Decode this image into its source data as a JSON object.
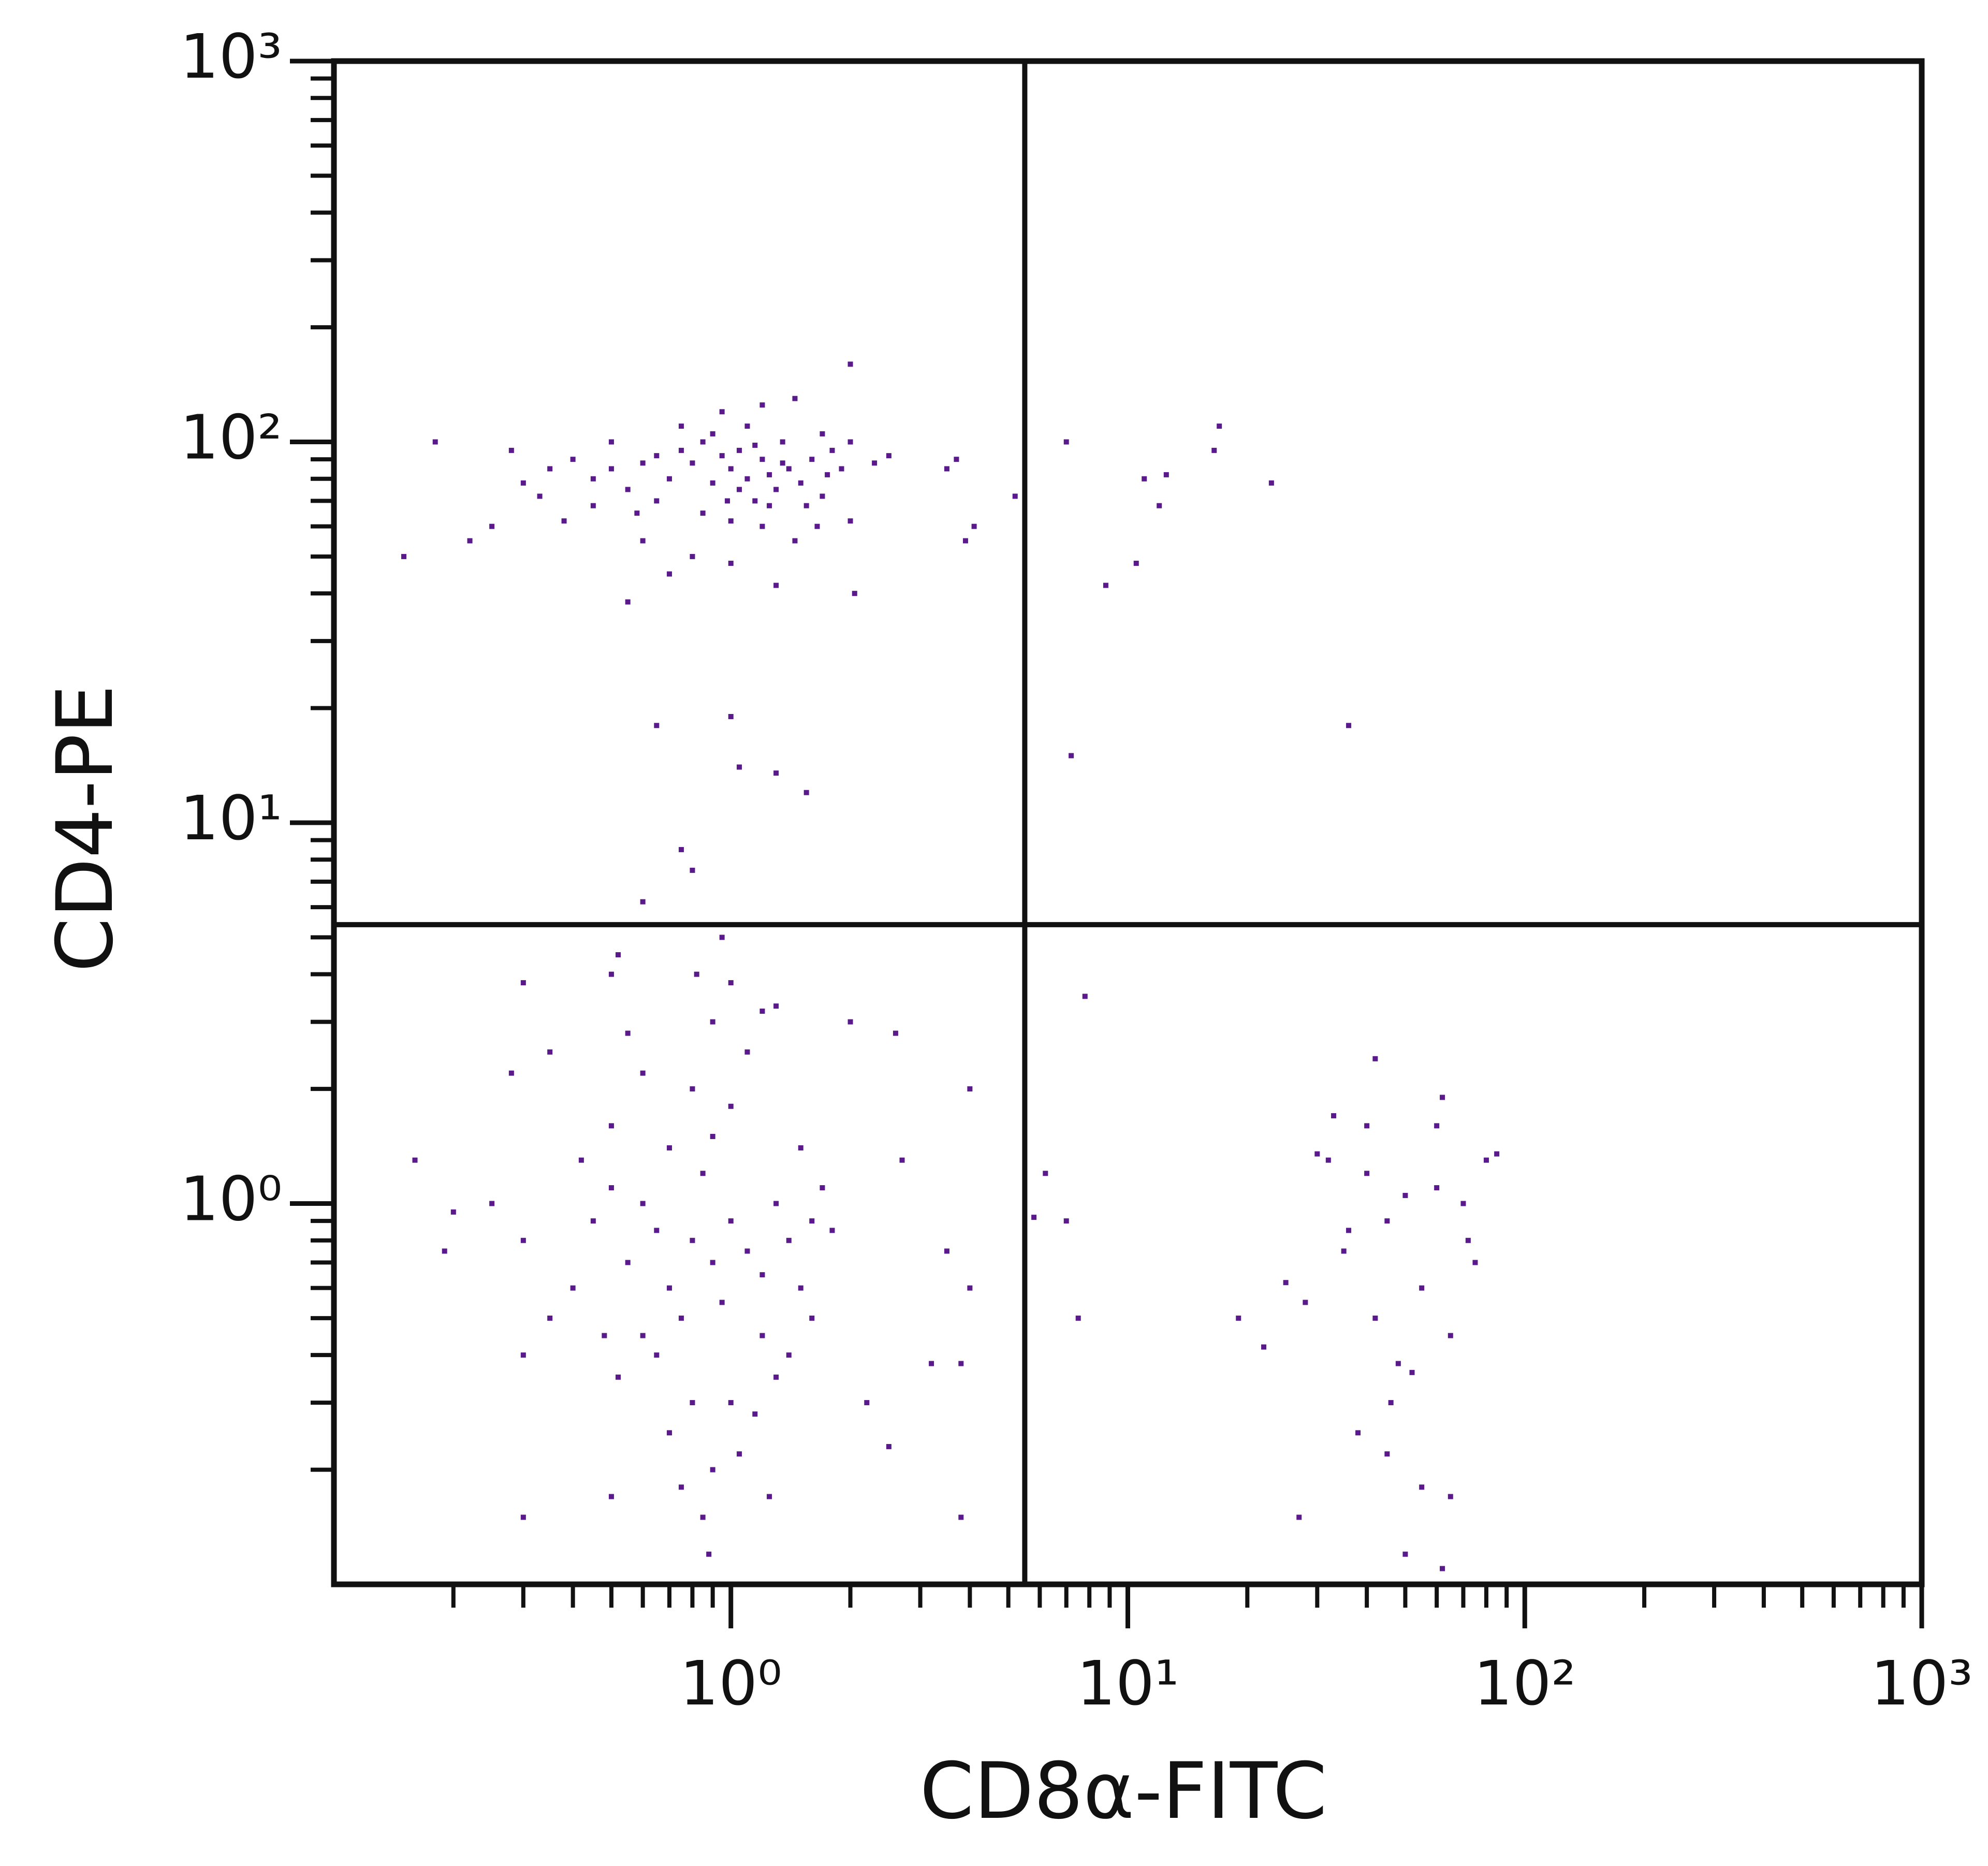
{
  "chart_data": {
    "type": "scatter",
    "x_label": "CD8α-FITC",
    "y_label": "CD4-PE",
    "color": "#5a1a8c",
    "xscale": "log",
    "yscale": "log",
    "xlim": [
      0.1,
      1000
    ],
    "ylim": [
      0.1,
      1000
    ],
    "xticks": [
      {
        "value": 1,
        "label": "10⁰"
      },
      {
        "value": 10,
        "label": "10¹"
      },
      {
        "value": 100,
        "label": "10²"
      },
      {
        "value": 1000,
        "label": "10³"
      }
    ],
    "yticks": [
      {
        "value": 1,
        "label": "10⁰"
      },
      {
        "value": 10,
        "label": "10¹"
      },
      {
        "value": 100,
        "label": "10²"
      },
      {
        "value": 1000,
        "label": "10³"
      }
    ],
    "xminorticks": [
      0.2,
      0.3,
      0.4,
      0.5,
      0.6,
      0.7,
      0.8,
      0.9,
      2,
      3,
      4,
      5,
      6,
      7,
      8,
      9,
      20,
      30,
      40,
      50,
      60,
      70,
      80,
      90,
      200,
      300,
      400,
      500,
      600,
      700,
      800,
      900
    ],
    "yminorticks": [
      0.2,
      0.3,
      0.4,
      0.5,
      0.6,
      0.7,
      0.8,
      0.9,
      2,
      3,
      4,
      5,
      6,
      7,
      8,
      9,
      20,
      30,
      40,
      50,
      60,
      70,
      80,
      90,
      200,
      300,
      400,
      500,
      600,
      700,
      800,
      900
    ],
    "gates": {
      "x": 5.5,
      "y": 5.4
    },
    "x": [
      1.0,
      1.1,
      1.2,
      0.9,
      1.3,
      0.8,
      1.05,
      1.15,
      1.25,
      0.95,
      1.4,
      0.7,
      0.75,
      0.6,
      1.5,
      1.6,
      1.7,
      0.55,
      0.5,
      0.45,
      0.85,
      1.0,
      1.2,
      1.35,
      0.9,
      1.1,
      0.65,
      1.8,
      1.9,
      2.0,
      0.4,
      0.35,
      0.3,
      0.28,
      0.25,
      0.18,
      0.15,
      0.22,
      0.6,
      0.7,
      0.55,
      0.8,
      1.0,
      1.3,
      1.45,
      2.0,
      2.05,
      2.0,
      1.7,
      2.3,
      2.5,
      0.5,
      0.45,
      0.38,
      0.33,
      0.95,
      1.2,
      1.45,
      0.75,
      1.55,
      1.65,
      1.75,
      0.85,
      1.05,
      1.25,
      1.15,
      0.65,
      0.58,
      1.35,
      0.98,
      3.5,
      3.9,
      4.1,
      3.7,
      5.2,
      7.0,
      8.8,
      10.5,
      11,
      12.5,
      12,
      16.5,
      17,
      23,
      7.2,
      36,
      0.65,
      1.0,
      1.05,
      1.3,
      1.55,
      0.75,
      0.8,
      0.6,
      0.95,
      0.8,
      0.9,
      1.0,
      0.7,
      0.6,
      1.1,
      0.85,
      0.75,
      0.95,
      1.2,
      0.65,
      0.55,
      0.5,
      0.45,
      1.3,
      1.4,
      1.5,
      1.6,
      0.9,
      0.8,
      1.0,
      0.7,
      0.6,
      1.1,
      0.9,
      0.55,
      1.2,
      0.5,
      0.4,
      0.35,
      0.3,
      0.42,
      1.4,
      1.3,
      1.0,
      0.8,
      0.7,
      0.9,
      1.05,
      0.75,
      0.65,
      0.6,
      1.2,
      1.5,
      1.6,
      1.7,
      1.8,
      0.48,
      0.52,
      1.15,
      0.85,
      1.25,
      0.3,
      0.25,
      0.2,
      0.19,
      0.16,
      0.28,
      0.3,
      0.35,
      0.52,
      0.82,
      1.0,
      1.3,
      2.0,
      2.6,
      2.7,
      2.2,
      2.5,
      3.2,
      3.8,
      3.5,
      4.0,
      4.0,
      3.8,
      0.3,
      0.5,
      0.88,
      0.5,
      40,
      45,
      50,
      35,
      55,
      60,
      42,
      48,
      52,
      38,
      45,
      55,
      32,
      30,
      33,
      40,
      42,
      62,
      60,
      70,
      75,
      72,
      80,
      85,
      65,
      28,
      25,
      22,
      19,
      36,
      46,
      27,
      50,
      62,
      65,
      7.5,
      7.0,
      6.2,
      5.8,
      7.8
    ],
    "values": [
      85,
      80,
      90,
      78,
      75,
      88,
      95,
      70,
      82,
      92,
      85,
      80,
      95,
      88,
      78,
      90,
      72,
      75,
      85,
      80,
      65,
      62,
      60,
      100,
      105,
      110,
      70,
      95,
      85,
      100,
      90,
      85,
      78,
      95,
      60,
      100,
      50,
      55,
      55,
      45,
      38,
      50,
      48,
      42,
      55,
      62,
      40,
      160,
      105,
      88,
      92,
      100,
      68,
      62,
      72,
      120,
      125,
      130,
      110,
      68,
      60,
      82,
      100,
      75,
      68,
      98,
      92,
      65,
      88,
      70,
      85,
      55,
      60,
      90,
      72,
      100,
      42,
      48,
      80,
      82,
      68,
      95,
      110,
      78,
      15,
      18,
      18,
      19,
      14,
      13.5,
      12,
      8.5,
      7.5,
      6.2,
      5.0,
      0.8,
      0.7,
      0.9,
      0.6,
      1.0,
      0.75,
      1.2,
      0.5,
      0.55,
      0.65,
      0.85,
      0.7,
      1.1,
      0.9,
      1.0,
      0.8,
      0.6,
      0.9,
      1.5,
      2.0,
      1.8,
      1.4,
      2.2,
      2.5,
      3.0,
      2.8,
      3.2,
      1.6,
      0.6,
      0.5,
      0.4,
      1.3,
      0.4,
      0.35,
      0.3,
      0.3,
      0.25,
      0.2,
      0.22,
      0.18,
      0.4,
      0.45,
      0.45,
      1.4,
      0.5,
      1.1,
      0.85,
      0.45,
      0.35,
      0.28,
      0.15,
      0.17,
      0.8,
      1.0,
      0.95,
      0.75,
      1.3,
      2.2,
      3.8,
      2.5,
      4.5,
      4.0,
      3.8,
      3.3,
      3.0,
      2.8,
      1.3,
      0.3,
      0.23,
      0.38,
      0.38,
      0.75,
      0.6,
      2.0,
      0.15,
      0.15,
      0.17,
      0.12,
      4.0,
      1.2,
      0.9,
      1.05,
      0.75,
      0.6,
      1.1,
      0.5,
      0.38,
      0.36,
      0.25,
      0.22,
      0.18,
      1.3,
      1.35,
      1.7,
      1.6,
      2.4,
      1.9,
      1.6,
      1.0,
      0.7,
      0.8,
      1.3,
      1.35,
      0.45,
      0.55,
      0.62,
      0.42,
      0.5,
      0.85,
      0.3,
      0.15,
      0.12,
      0.11,
      0.17,
      0.5,
      0.9,
      1.2,
      0.92,
      3.5
    ]
  }
}
